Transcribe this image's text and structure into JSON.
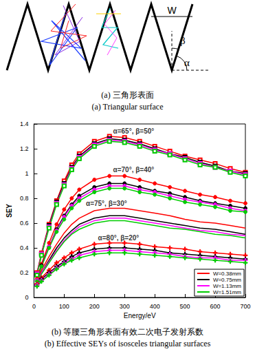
{
  "figure_a": {
    "width_label": "W",
    "beta_label": "β",
    "alpha_label": "α"
  },
  "captions": {
    "a": [
      "(a) 三角形表面",
      "(a) Triangular surface"
    ],
    "b": [
      "(b) 等腰三角形表面有效二次电子发射系数",
      "(b) Effective SEYs of isosceles triangular surfaces"
    ]
  },
  "chart_data": {
    "type": "line",
    "x_label": "Energy/eV",
    "y_label": "SEY",
    "xlim": [
      0,
      700
    ],
    "xticks": [
      0,
      100,
      200,
      300,
      400,
      500,
      600,
      700
    ],
    "ylim": [
      0,
      1.4
    ],
    "yticks": [
      0,
      0.2,
      0.4,
      0.6,
      0.8,
      1,
      1.2,
      1.4
    ],
    "grid": false,
    "legend": "lower right",
    "x": [
      10,
      25,
      50,
      75,
      100,
      125,
      150,
      200,
      250,
      300,
      350,
      400,
      450,
      500,
      550,
      600,
      650,
      700
    ],
    "annotations": [
      {
        "text": "α=65°, β=50°",
        "x": 330,
        "y": 1.34
      },
      {
        "text": "α=70°, β=40°",
        "x": 330,
        "y": 1.03
      },
      {
        "text": "α=75°, β=30°",
        "x": 240,
        "y": 0.76
      },
      {
        "text": "α=80°, β=20°",
        "x": 280,
        "y": 0.48
      }
    ],
    "series": [
      {
        "name": "W=0.38mm",
        "color": "#ff0000",
        "marker": "square_open",
        "line_style": "solid",
        "values": [
          0.2,
          0.36,
          0.59,
          0.78,
          0.94,
          1.07,
          1.16,
          1.26,
          1.3,
          1.29,
          1.26,
          1.22,
          1.18,
          1.14,
          1.11,
          1.08,
          1.04,
          1.01
        ]
      },
      {
        "name": "W=0.75mm",
        "color": "#000000",
        "marker": "square_open",
        "line_style": "solid",
        "values": [
          0.19,
          0.35,
          0.58,
          0.77,
          0.92,
          1.05,
          1.14,
          1.24,
          1.28,
          1.27,
          1.24,
          1.2,
          1.16,
          1.13,
          1.09,
          1.06,
          1.02,
          1.0
        ]
      },
      {
        "name": "W=1.13mm",
        "color": "#ff00ff",
        "marker": "square_open",
        "line_style": "solid",
        "values": [
          0.19,
          0.35,
          0.57,
          0.76,
          0.91,
          1.04,
          1.13,
          1.23,
          1.27,
          1.26,
          1.23,
          1.19,
          1.16,
          1.12,
          1.08,
          1.05,
          1.02,
          0.99
        ]
      },
      {
        "name": "W=1.51mm",
        "color": "#00cc00",
        "marker": "square_open",
        "line_style": "solid",
        "values": [
          0.18,
          0.34,
          0.56,
          0.75,
          0.9,
          1.03,
          1.12,
          1.22,
          1.26,
          1.25,
          1.22,
          1.18,
          1.15,
          1.11,
          1.07,
          1.05,
          1.01,
          0.98
        ]
      },
      {
        "name": "W=0.38mm",
        "color": "#ff0000",
        "marker": "circle",
        "line_style": "solid",
        "values": [
          0.15,
          0.27,
          0.44,
          0.59,
          0.71,
          0.8,
          0.87,
          0.95,
          0.98,
          0.98,
          0.95,
          0.92,
          0.89,
          0.86,
          0.83,
          0.81,
          0.78,
          0.76
        ]
      },
      {
        "name": "W=0.75mm",
        "color": "#000000",
        "marker": "circle",
        "line_style": "solid",
        "values": [
          0.14,
          0.26,
          0.41,
          0.55,
          0.66,
          0.75,
          0.82,
          0.89,
          0.92,
          0.92,
          0.89,
          0.86,
          0.84,
          0.81,
          0.78,
          0.76,
          0.74,
          0.72
        ]
      },
      {
        "name": "W=1.13mm",
        "color": "#ff00ff",
        "marker": "circle",
        "line_style": "solid",
        "values": [
          0.14,
          0.25,
          0.41,
          0.54,
          0.65,
          0.74,
          0.8,
          0.87,
          0.9,
          0.9,
          0.87,
          0.85,
          0.82,
          0.79,
          0.77,
          0.75,
          0.72,
          0.7
        ]
      },
      {
        "name": "W=1.51mm",
        "color": "#00cc00",
        "marker": "circle",
        "line_style": "solid",
        "values": [
          0.13,
          0.25,
          0.4,
          0.53,
          0.63,
          0.72,
          0.78,
          0.85,
          0.88,
          0.88,
          0.85,
          0.83,
          0.8,
          0.77,
          0.75,
          0.73,
          0.7,
          0.69
        ]
      },
      {
        "name": "W=0.38mm",
        "color": "#ff0000",
        "marker": "none",
        "line_style": "solid",
        "values": [
          0.13,
          0.22,
          0.33,
          0.43,
          0.52,
          0.59,
          0.64,
          0.7,
          0.72,
          0.72,
          0.7,
          0.68,
          0.66,
          0.63,
          0.61,
          0.6,
          0.58,
          0.56
        ]
      },
      {
        "name": "W=0.75mm",
        "color": "#000000",
        "marker": "none",
        "line_style": "solid",
        "values": [
          0.12,
          0.2,
          0.3,
          0.4,
          0.48,
          0.54,
          0.59,
          0.64,
          0.66,
          0.66,
          0.64,
          0.62,
          0.6,
          0.58,
          0.56,
          0.55,
          0.53,
          0.51
        ]
      },
      {
        "name": "W=1.13mm",
        "color": "#ff00ff",
        "marker": "none",
        "line_style": "solid",
        "values": [
          0.12,
          0.2,
          0.29,
          0.38,
          0.46,
          0.52,
          0.57,
          0.62,
          0.64,
          0.64,
          0.62,
          0.6,
          0.58,
          0.56,
          0.54,
          0.53,
          0.51,
          0.5
        ]
      },
      {
        "name": "W=1.51mm",
        "color": "#00cc00",
        "marker": "none",
        "line_style": "solid",
        "values": [
          0.11,
          0.19,
          0.28,
          0.37,
          0.45,
          0.51,
          0.55,
          0.6,
          0.62,
          0.62,
          0.6,
          0.58,
          0.56,
          0.55,
          0.53,
          0.51,
          0.5,
          0.48
        ]
      },
      {
        "name": "W=0.38mm",
        "color": "#ff0000",
        "marker": "plus",
        "line_style": "solid",
        "values": [
          0.11,
          0.16,
          0.22,
          0.28,
          0.32,
          0.36,
          0.39,
          0.43,
          0.44,
          0.44,
          0.43,
          0.41,
          0.4,
          0.39,
          0.37,
          0.36,
          0.35,
          0.34
        ]
      },
      {
        "name": "W=0.75mm",
        "color": "#000000",
        "marker": "plus",
        "line_style": "solid",
        "values": [
          0.1,
          0.15,
          0.2,
          0.25,
          0.29,
          0.33,
          0.36,
          0.39,
          0.4,
          0.4,
          0.39,
          0.38,
          0.36,
          0.35,
          0.34,
          0.33,
          0.32,
          0.31
        ]
      },
      {
        "name": "W=1.13mm",
        "color": "#ff00ff",
        "marker": "plus",
        "line_style": "solid",
        "values": [
          0.1,
          0.14,
          0.19,
          0.24,
          0.28,
          0.31,
          0.34,
          0.37,
          0.38,
          0.38,
          0.37,
          0.36,
          0.35,
          0.33,
          0.32,
          0.32,
          0.3,
          0.3
        ]
      },
      {
        "name": "W=1.51mm",
        "color": "#00cc00",
        "marker": "plus",
        "line_style": "solid",
        "values": [
          0.09,
          0.13,
          0.18,
          0.23,
          0.27,
          0.3,
          0.32,
          0.35,
          0.36,
          0.36,
          0.35,
          0.34,
          0.33,
          0.32,
          0.31,
          0.3,
          0.29,
          0.28
        ]
      }
    ]
  }
}
